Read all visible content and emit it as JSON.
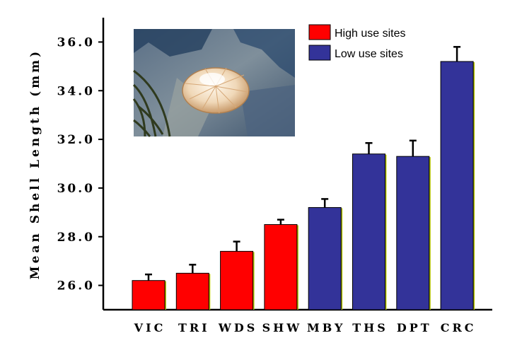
{
  "chart_data": {
    "type": "bar",
    "ylabel": "Mean Shell Length (mm)",
    "xlabel": "",
    "ylim": [
      25.0,
      37.0
    ],
    "yticks": [
      26.0,
      28.0,
      30.0,
      32.0,
      34.0,
      36.0
    ],
    "ytick_labels": [
      "26.0",
      "28.0",
      "30.0",
      "32.0",
      "34.0",
      "36.0"
    ],
    "categories": [
      "VIC",
      "TRI",
      "WDS",
      "SHW",
      "MBY",
      "THS",
      "DPT",
      "CRC"
    ],
    "values": [
      26.2,
      26.5,
      27.4,
      28.5,
      29.2,
      31.4,
      31.3,
      35.2
    ],
    "errors": [
      0.25,
      0.35,
      0.4,
      0.2,
      0.35,
      0.45,
      0.65,
      0.6
    ],
    "groups": [
      "high",
      "high",
      "high",
      "high",
      "low",
      "low",
      "low",
      "low"
    ],
    "legend": [
      {
        "key": "high",
        "label": "High use sites",
        "color": "#ff0000"
      },
      {
        "key": "low",
        "label": "Low use sites",
        "color": "#333399"
      }
    ],
    "legend_position": "top-right",
    "grid": false,
    "inset_photo": "limpet shell on rock with seaweed"
  }
}
